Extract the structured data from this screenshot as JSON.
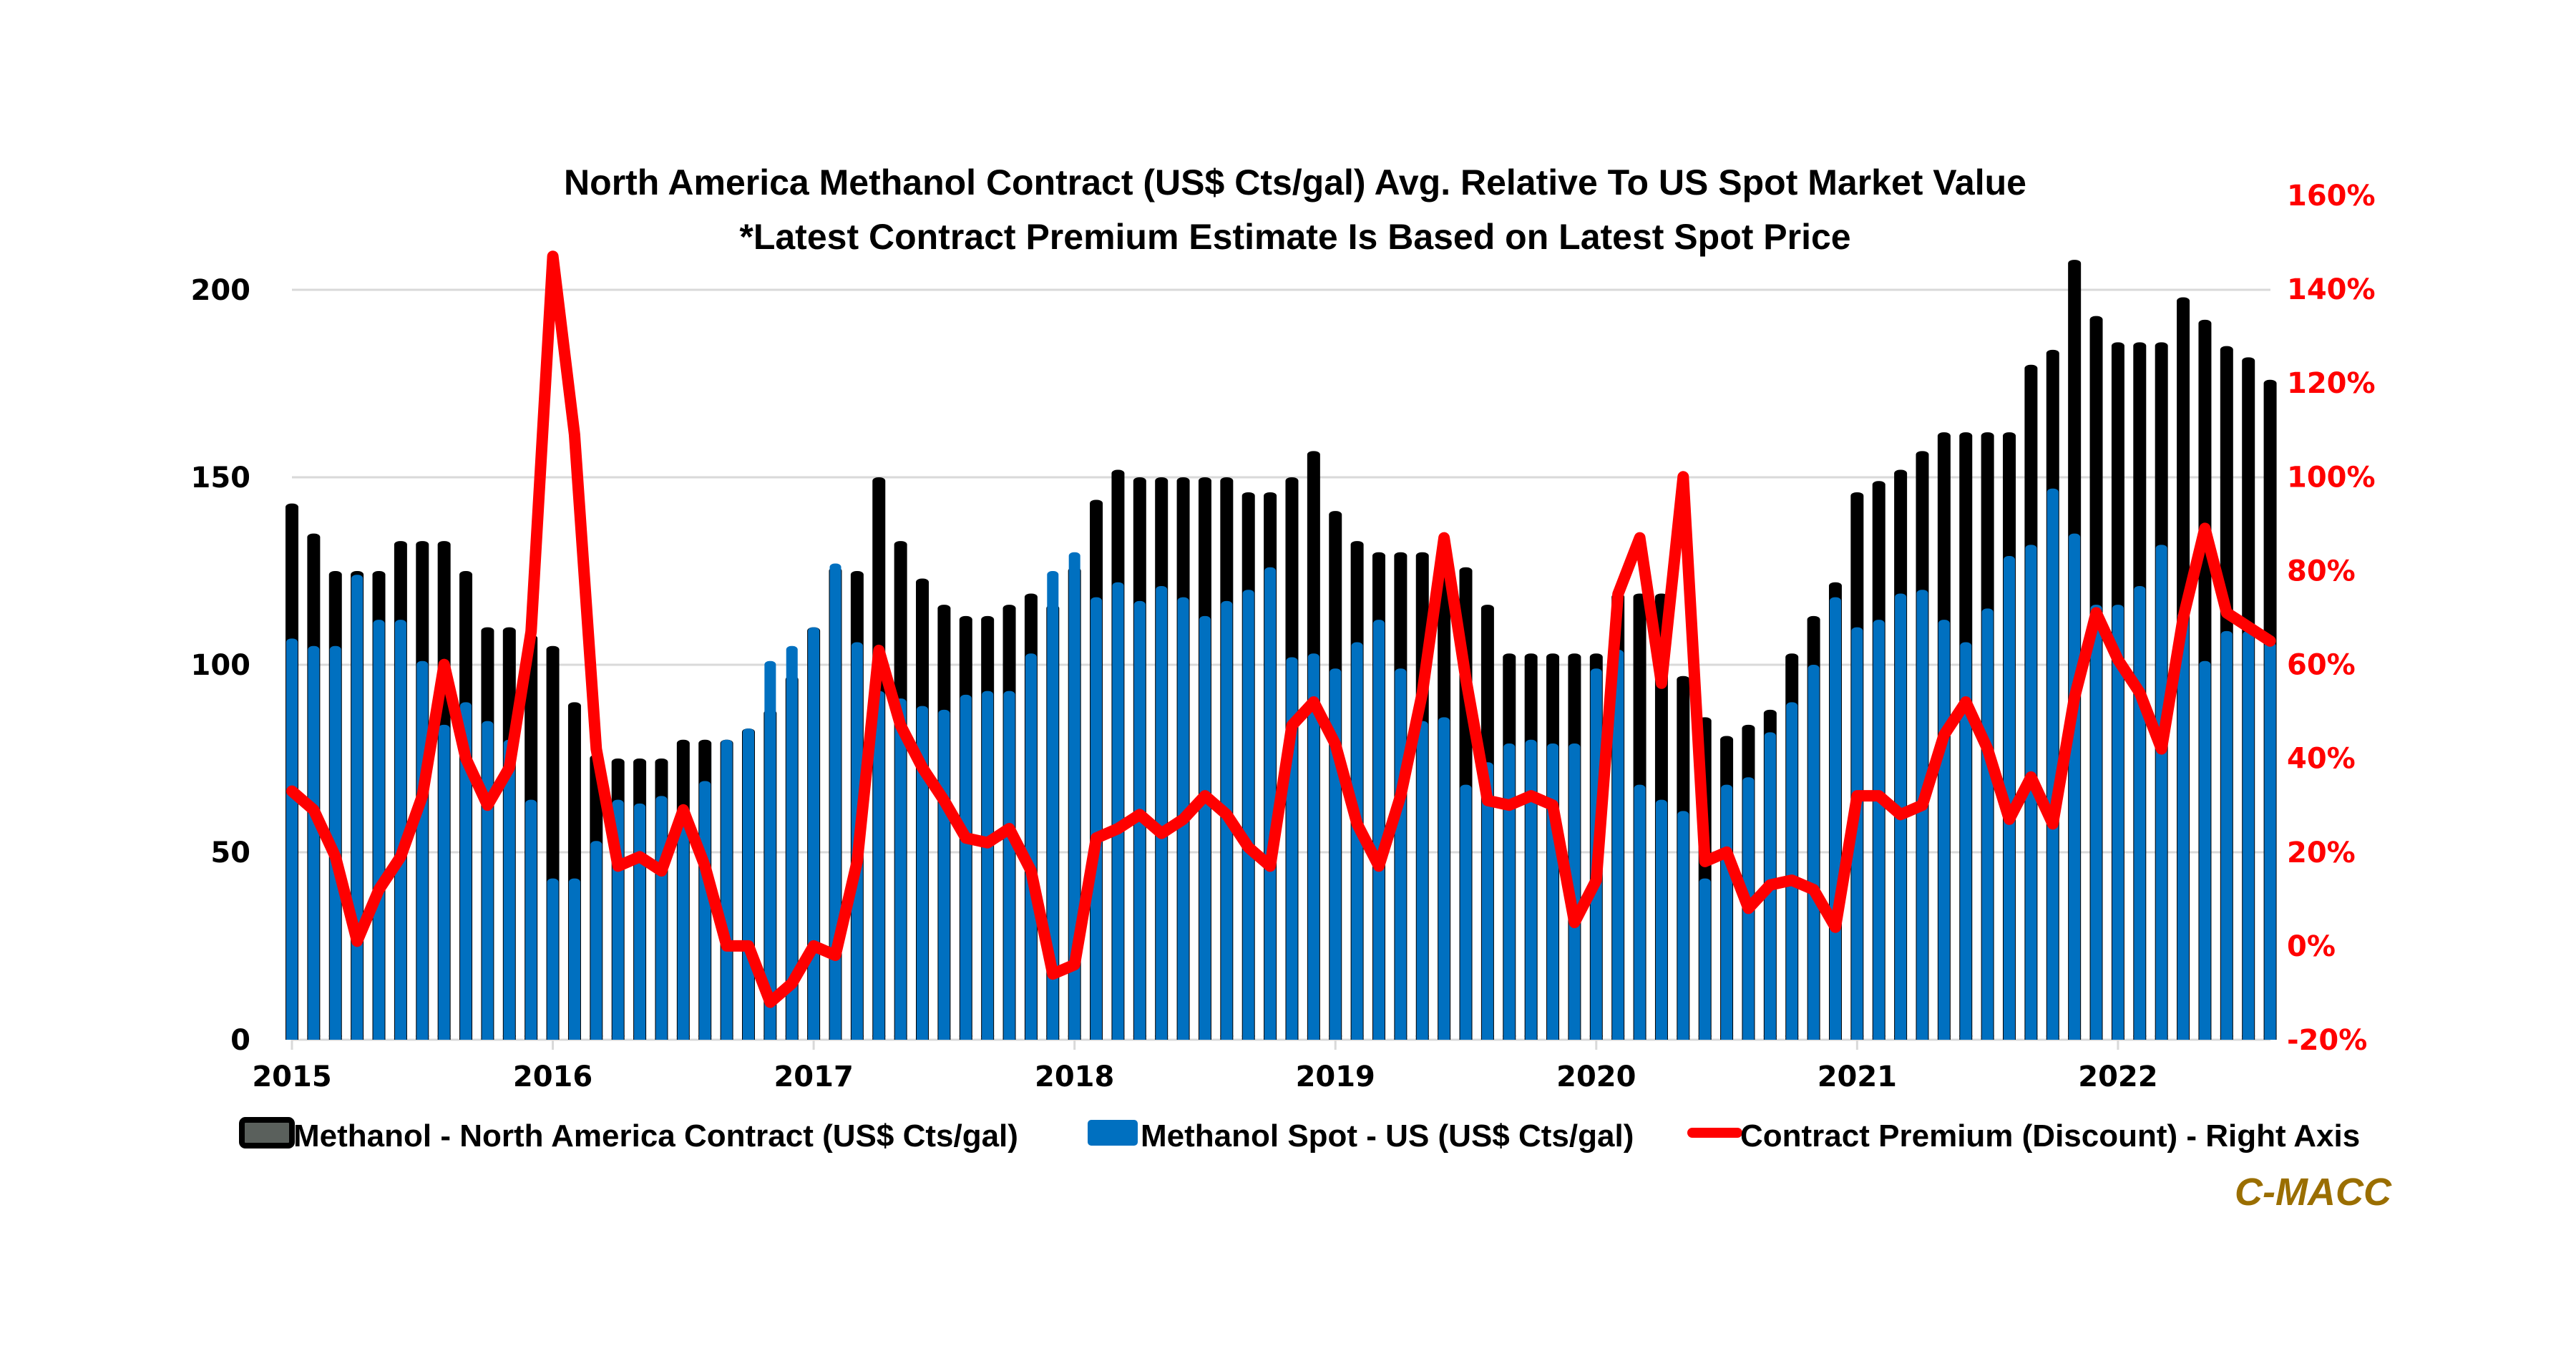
{
  "chart_data": {
    "type": "bar+line",
    "title": "North America Methanol Contract (US$ Cts/gal) Avg. Relative To US Spot Market Value",
    "subtitle": "*Latest Contract Premium Estimate Is Based on Latest Spot Price",
    "x_start": "2015-01",
    "x_frequency": "monthly",
    "x_tick_labels": [
      "2015",
      "2016",
      "2017",
      "2018",
      "2019",
      "2020",
      "2021",
      "2022"
    ],
    "left_axis": {
      "ylim": [
        0,
        200
      ],
      "ticks": [
        "0",
        "50",
        "100",
        "150",
        "200"
      ],
      "gridlines": true
    },
    "right_axis": {
      "ylim": [
        -20,
        160
      ],
      "ticks": [
        "-20%",
        "0%",
        "20%",
        "40%",
        "60%",
        "80%",
        "100%",
        "120%",
        "140%",
        "160%"
      ],
      "color": "#ff0000"
    },
    "series": [
      {
        "name": "Methanol - North America Contract (US$ Cts/gal)",
        "type": "bar",
        "axis": "left",
        "color": "#000000",
        "values": [
          143,
          135,
          125,
          125,
          125,
          133,
          133,
          133,
          125,
          110,
          110,
          108,
          105,
          90,
          76,
          75,
          75,
          75,
          80,
          80,
          80,
          83,
          88,
          97,
          110,
          126,
          125,
          150,
          133,
          123,
          116,
          113,
          113,
          116,
          119,
          116,
          126,
          144,
          152,
          150,
          150,
          150,
          150,
          150,
          146,
          146,
          150,
          157,
          141,
          133,
          130,
          130,
          130,
          130,
          126,
          116,
          103,
          103,
          103,
          103,
          103,
          119,
          119,
          119,
          97,
          86,
          81,
          84,
          88,
          103,
          113,
          122,
          146,
          149,
          152,
          157,
          162,
          162,
          162,
          162,
          180,
          184,
          208,
          193,
          186,
          186,
          186,
          198,
          192,
          185,
          182,
          176
        ]
      },
      {
        "name": "Methanol Spot - US (US$ Cts/gal)",
        "type": "bar",
        "axis": "left",
        "color": "#0070c0",
        "values": [
          107,
          105,
          105,
          124,
          112,
          112,
          101,
          84,
          90,
          85,
          80,
          64,
          43,
          43,
          53,
          64,
          63,
          65,
          60,
          69,
          80,
          83,
          101,
          105,
          110,
          127,
          106,
          93,
          91,
          89,
          88,
          92,
          93,
          93,
          103,
          125,
          130,
          118,
          122,
          117,
          121,
          118,
          113,
          117,
          120,
          126,
          102,
          103,
          99,
          106,
          112,
          99,
          85,
          86,
          68,
          74,
          79,
          80,
          79,
          79,
          99,
          104,
          68,
          64,
          61,
          43,
          68,
          70,
          82,
          90,
          100,
          118,
          110,
          112,
          119,
          120,
          112,
          106,
          115,
          129,
          132,
          147,
          135,
          116,
          116,
          121,
          132,
          114,
          101,
          109,
          109,
          106
        ]
      },
      {
        "name": "Contract Premium (Discount) - Right Axis",
        "type": "line",
        "axis": "right",
        "unit": "%",
        "color": "#ff0000",
        "values": [
          33,
          29,
          19,
          1,
          12,
          19,
          32,
          60,
          40,
          30,
          38,
          67,
          147,
          109,
          42,
          17,
          19,
          16,
          29,
          17,
          0,
          0,
          -12,
          -8,
          0,
          -2,
          18,
          63,
          47,
          38,
          31,
          23,
          22,
          25,
          16,
          -6,
          -4,
          23,
          25,
          28,
          24,
          27,
          32,
          28,
          21,
          17,
          47,
          52,
          43,
          26,
          17,
          32,
          54,
          87,
          57,
          31,
          30,
          32,
          30,
          5,
          14,
          75,
          87,
          56,
          100,
          18,
          20,
          8,
          13,
          14,
          12,
          4,
          32,
          32,
          28,
          30,
          45,
          52,
          42,
          27,
          36,
          26,
          53,
          71,
          61,
          54,
          42,
          70,
          89,
          71,
          68,
          65
        ]
      }
    ],
    "legend": {
      "placement": "bottom",
      "items": [
        {
          "label": "Methanol - North America Contract (US$ Cts/gal)",
          "swatch": "box",
          "color": "#000000",
          "fill": "#5a605c"
        },
        {
          "label": "Methanol Spot - US (US$ Cts/gal)",
          "swatch": "box",
          "color": "#0070c0",
          "fill": "#0070c0"
        },
        {
          "label": "Contract Premium (Discount) - Right Axis",
          "swatch": "line",
          "color": "#ff0000"
        }
      ]
    },
    "source_label": "C-MACC",
    "source_color": "#9a6e00",
    "gridline_color": "#d9d9d9"
  }
}
